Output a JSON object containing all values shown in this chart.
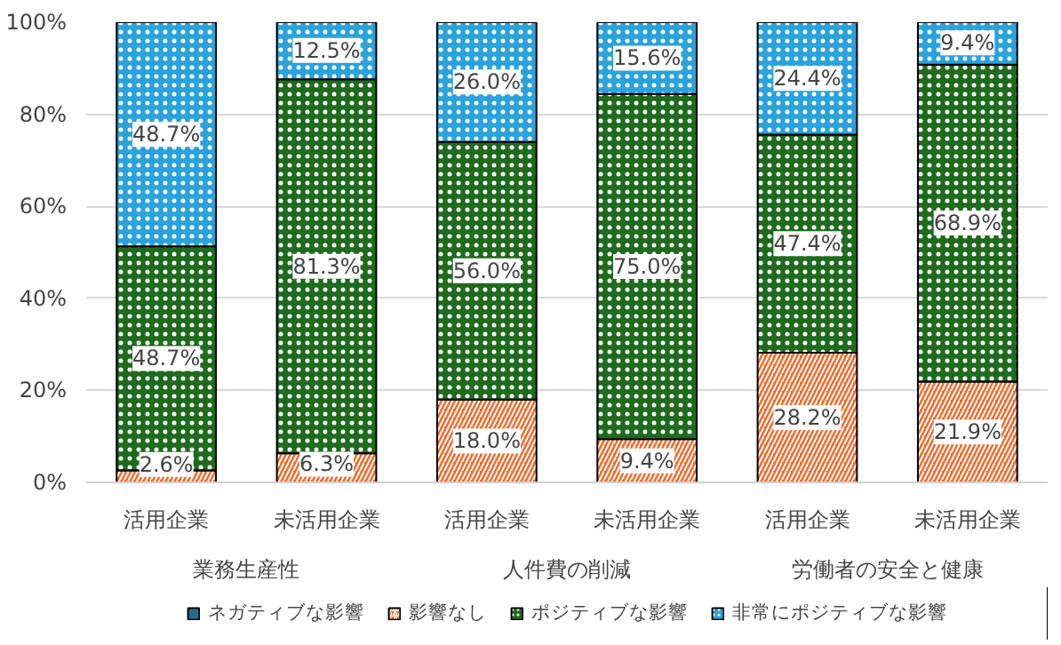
{
  "chart_data": {
    "type": "bar",
    "stacked": true,
    "categories": [
      "活用企業",
      "未活用企業",
      "活用企業",
      "未活用企業",
      "活用企業",
      "未活用企業"
    ],
    "annotations": [
      "業務生産性",
      "人件費の削減",
      "労働者の安全と健康"
    ],
    "series": [
      {
        "name": "ネガティブな影響",
        "color": "#1f6e8c",
        "values": [
          0,
          0,
          0,
          0,
          0,
          0
        ],
        "value_labels": [
          null,
          null,
          null,
          null,
          null,
          null
        ]
      },
      {
        "name": "影響なし",
        "color": "#f26a2a",
        "values": [
          2.6,
          6.3,
          18.0,
          9.4,
          28.2,
          21.9
        ],
        "value_labels": [
          "2.6%",
          "6.3%",
          "18.0%",
          "9.4%",
          "28.2%",
          "21.9%"
        ]
      },
      {
        "name": "ポジティブな影響",
        "color": "#1e6b1e",
        "values": [
          48.7,
          81.3,
          56.0,
          75.0,
          47.4,
          68.9
        ],
        "value_labels": [
          "48.7%",
          "81.3%",
          "56.0%",
          "75.0%",
          "47.4%",
          "68.9%"
        ]
      },
      {
        "name": "非常にポジティブな影響",
        "color": "#2aa3dc",
        "values": [
          48.7,
          12.5,
          26.0,
          15.6,
          24.4,
          9.4
        ],
        "value_labels": [
          "48.7%",
          "12.5%",
          "26.0%",
          "15.6%",
          "24.4%",
          "9.4%"
        ]
      }
    ],
    "ylim": [
      0,
      100
    ],
    "yticks": [
      {
        "value": 0,
        "label": "0%"
      },
      {
        "value": 20,
        "label": "20%"
      },
      {
        "value": 40,
        "label": "40%"
      },
      {
        "value": 60,
        "label": "60%"
      },
      {
        "value": 80,
        "label": "80%"
      },
      {
        "value": 100,
        "label": "100%"
      }
    ],
    "grid": "y",
    "legend": "bottom"
  }
}
